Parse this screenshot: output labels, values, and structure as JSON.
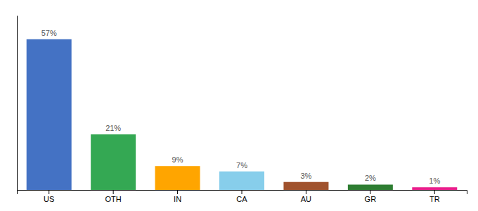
{
  "chart_data": {
    "type": "bar",
    "categories": [
      "US",
      "OTH",
      "IN",
      "CA",
      "AU",
      "GR",
      "TR"
    ],
    "values": [
      57,
      21,
      9,
      7,
      3,
      2,
      1
    ],
    "value_labels": [
      "57%",
      "21%",
      "9%",
      "7%",
      "3%",
      "2%",
      "1%"
    ],
    "colors": [
      "#4472C4",
      "#34A853",
      "#FFA500",
      "#87CEEB",
      "#A0522D",
      "#2E7D32",
      "#E91E8C"
    ],
    "ylim": [
      0,
      66
    ],
    "tick_labels": "x",
    "data_labels": true,
    "grid": false
  }
}
